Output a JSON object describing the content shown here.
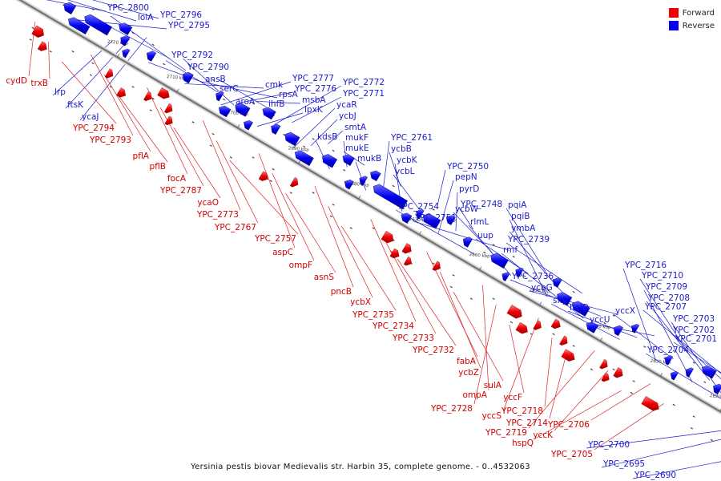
{
  "caption": "Yersinia pestis biovar Medievalis str. Harbin 35, complete genome. - 0..4532063",
  "legend": [
    {
      "label": "Forward",
      "color": "#ee0000"
    },
    {
      "label": "Reverse",
      "color": "#0000ee"
    }
  ],
  "colors": {
    "forward": "#ee0000",
    "reverse": "#0000ee",
    "backbone": "#777777"
  },
  "ticks": [
    "2720 kbp",
    "2710 kbp",
    "2700 kbp",
    "2690 kbp",
    "2680 kbp",
    "2670 kbp",
    "2660 kbp",
    "2650 kbp",
    "2640 kbp",
    "2630 kbp",
    "2620 kbp",
    "2610 kbp"
  ],
  "forward_labels": [
    "cydD",
    "trxB",
    "YPC_2794",
    "YPC_2793",
    "pflA",
    "pflB",
    "focA",
    "YPC_2787",
    "ycaO",
    "YPC_2773",
    "YPC_2767",
    "YPC_2757",
    "aspC",
    "ompF",
    "asnS",
    "pncB",
    "ycbX",
    "YPC_2735",
    "YPC_2734",
    "YPC_2733",
    "YPC_2732",
    "fabA",
    "ycbZ",
    "sulA",
    "ompA",
    "YPC_2728",
    "yccF",
    "yccS",
    "YPC_2718",
    "YPC_2714",
    "YPC_2719",
    "yccK",
    "hspQ",
    "YPC_2706",
    "YPC_2705"
  ],
  "reverse_labels": [
    "YPC_2800",
    "lolA",
    "YPC_2796",
    "YPC_2795",
    "YPC_2792",
    "YPC_2790",
    "lrp",
    "ftsK",
    "ycaJ",
    "ansB",
    "serC",
    "aroA",
    "cmk",
    "rpsA",
    "ihfB",
    "YPC_2777",
    "YPC_2776",
    "msbA",
    "lpxK",
    "YPC_2772",
    "YPC_2771",
    "ycaR",
    "ycbJ",
    "smtA",
    "kdsB",
    "mukF",
    "mukE",
    "mukB",
    "YPC_2761",
    "ycbB",
    "ycbK",
    "ycbL",
    "YPC_2750",
    "pepN",
    "pyrD",
    "YPC_2748",
    "YPC_2754",
    "ycbW",
    "YPC_2751",
    "rlmL",
    "uup",
    "pqiA",
    "pqiB",
    "ymbA",
    "YPC_2739",
    "rmf",
    "YPC_2736",
    "ycbG",
    "sxy",
    "helD",
    "yccU",
    "YPC_2716",
    "yccX",
    "YPC_2710",
    "YPC_2709",
    "YPC_2708",
    "YPC_2707",
    "YPC_2703",
    "YPC_2702",
    "YPC_2701",
    "YPC_2704",
    "YPC_2700",
    "YPC_2695",
    "YPC_2690"
  ]
}
